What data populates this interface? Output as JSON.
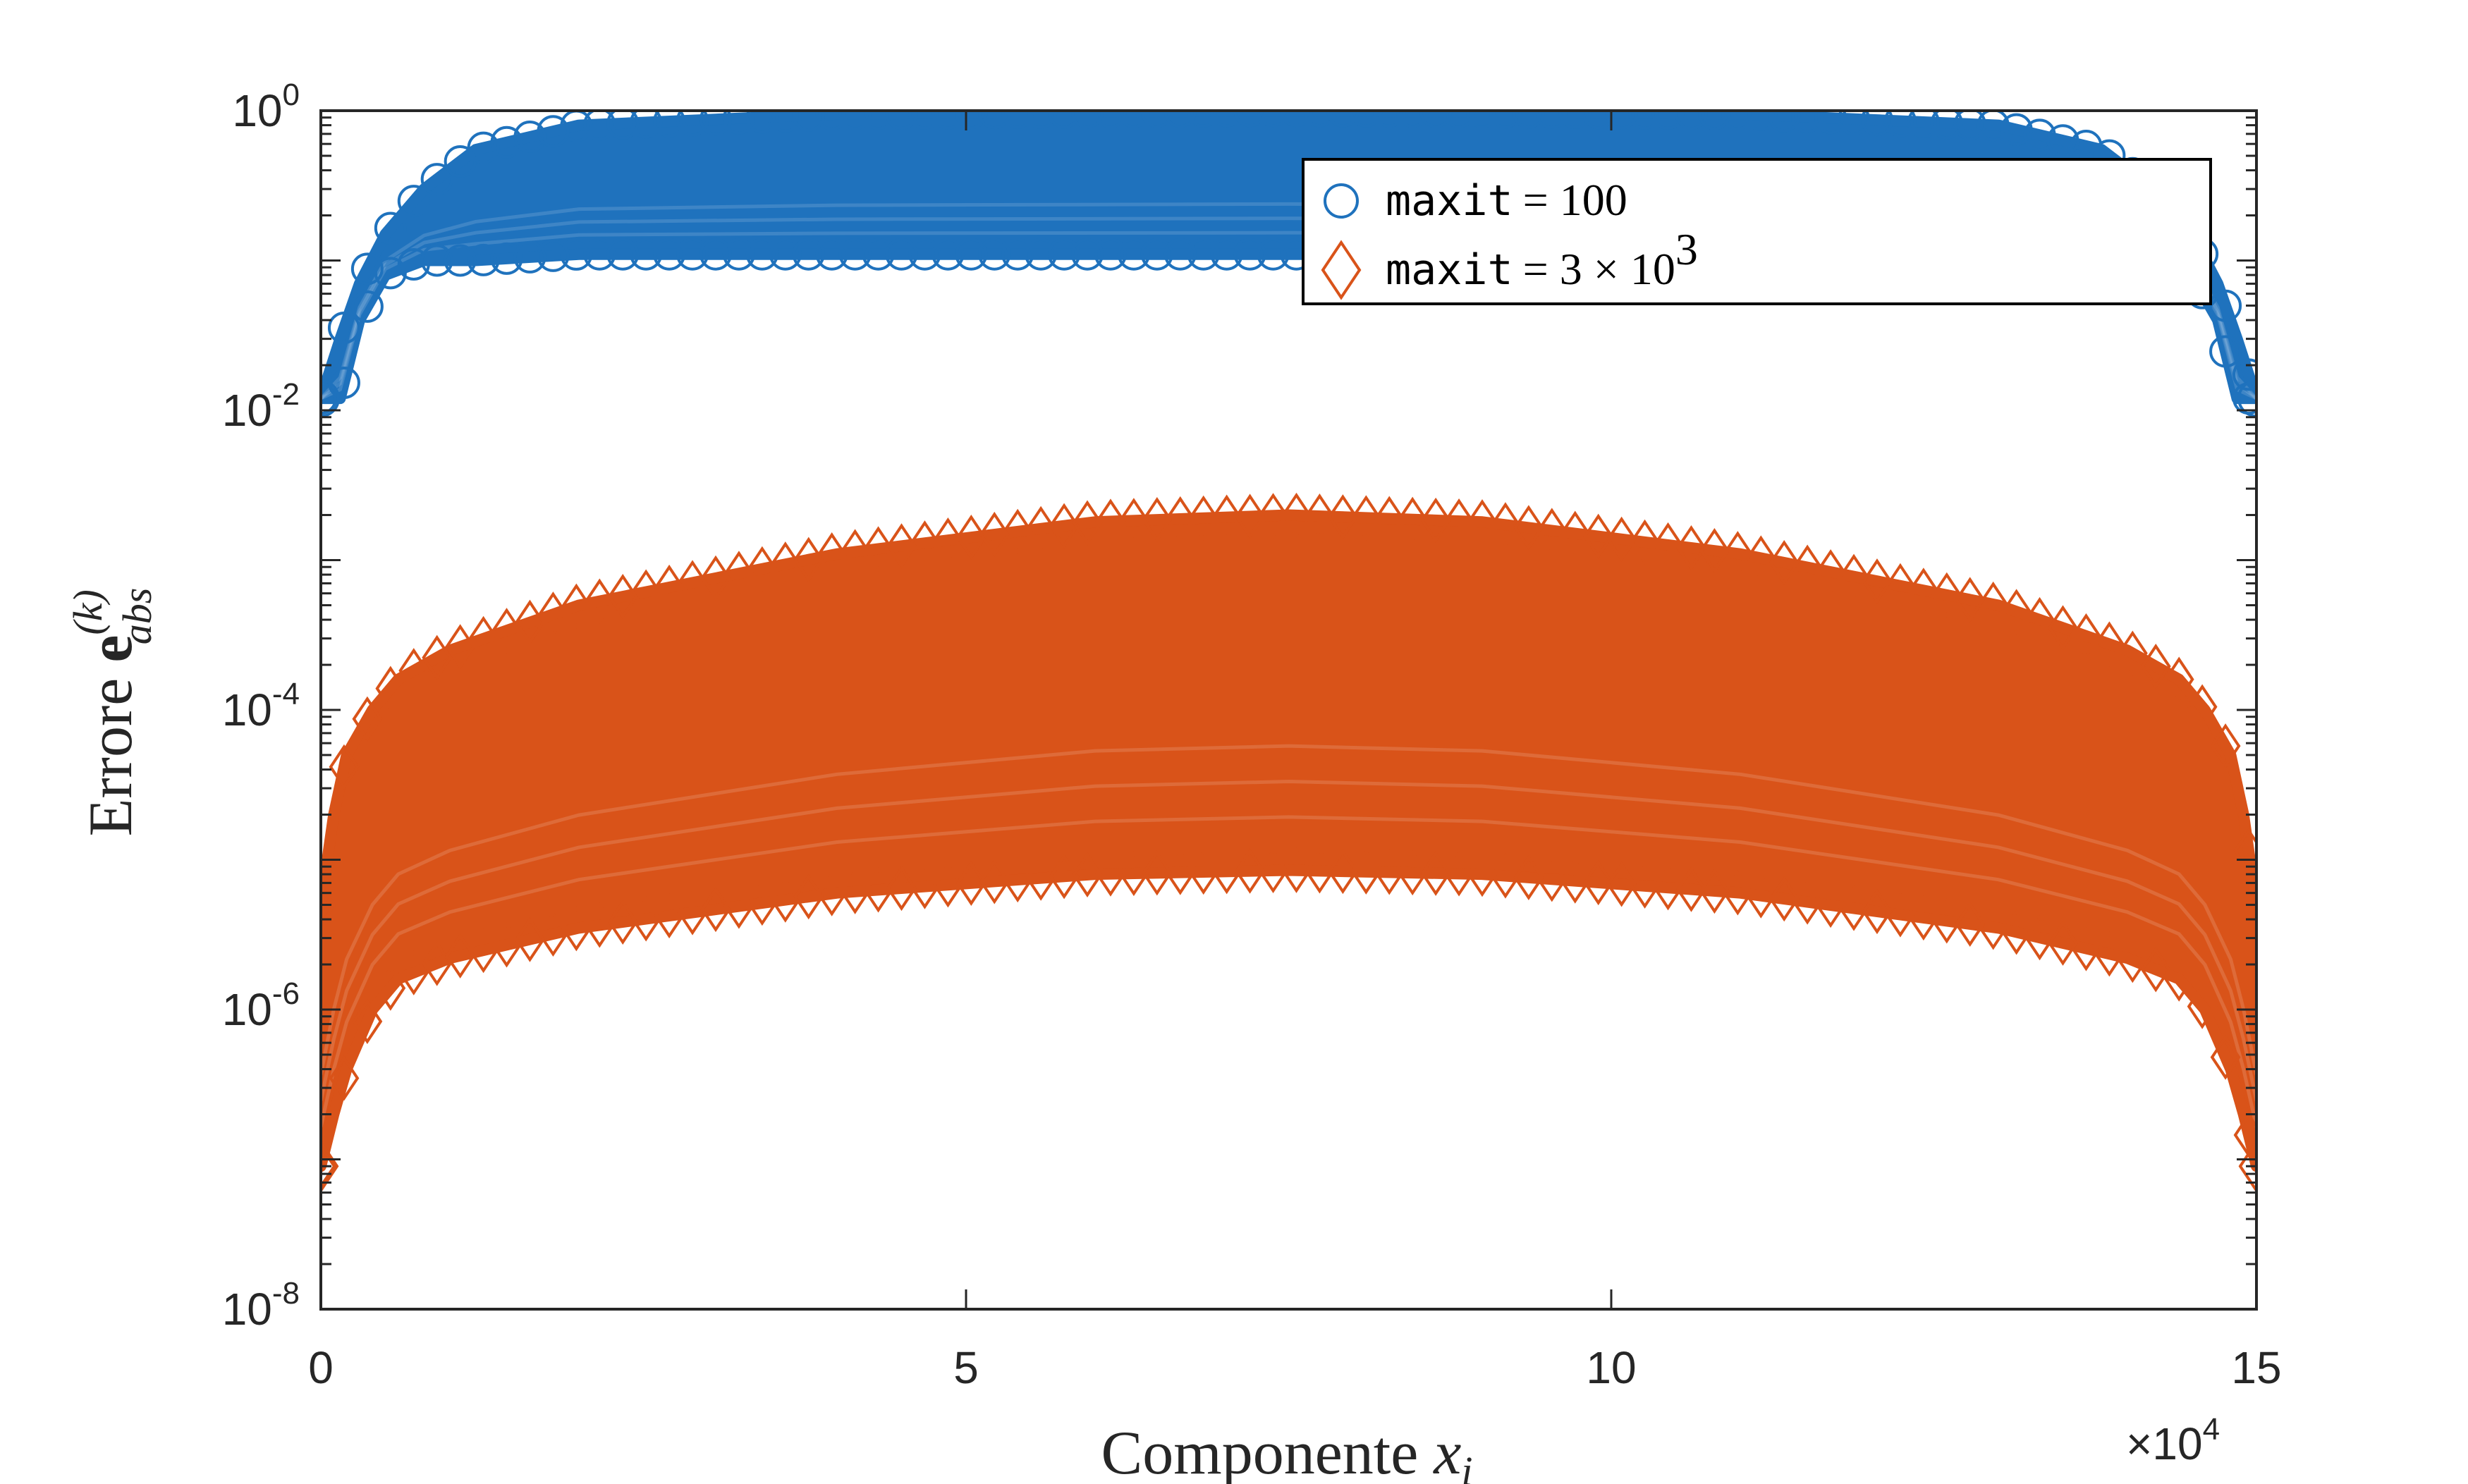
{
  "chart_data": {
    "type": "scatter",
    "xlabel": "Componente x_i",
    "ylabel": "Errore e_abs^(k)",
    "ylabel_parts": {
      "prefix": "Errore ",
      "bold": "e",
      "sup": "(k)",
      "sub": "abs"
    },
    "xlabel_parts": {
      "prefix": "Componente ",
      "var": "x",
      "sub": "i"
    },
    "xlim": [
      0,
      150000
    ],
    "ylim": [
      1e-08,
      1
    ],
    "yscale": "log",
    "x_exponent_label": {
      "base": "×10",
      "exp": "4"
    },
    "x_ticks": [
      {
        "value": 0,
        "label": "0"
      },
      {
        "value": 50000,
        "label": "5"
      },
      {
        "value": 100000,
        "label": "10"
      },
      {
        "value": 150000,
        "label": "15"
      }
    ],
    "y_ticks": [
      {
        "value": 1,
        "base": "10",
        "exp": "0"
      },
      {
        "value": 0.01,
        "base": "10",
        "exp": "-2"
      },
      {
        "value": 0.0001,
        "base": "10",
        "exp": "-4"
      },
      {
        "value": 1e-06,
        "base": "10",
        "exp": "-6"
      },
      {
        "value": 1e-08,
        "base": "10",
        "exp": "-8"
      }
    ],
    "grid": false,
    "legend_position": "top-right",
    "series": [
      {
        "name": "maxit = 100",
        "legend": {
          "code": "maxit",
          "math": "= 100",
          "sup": ""
        },
        "marker": "circle",
        "color": "#1f72bd",
        "x": [
          0,
          1500,
          3000,
          5000,
          8000,
          12000,
          20000,
          40000,
          75000,
          110000,
          130000,
          138000,
          142000,
          145000,
          147000,
          148500,
          150000
        ],
        "y": [
          0.012,
          0.03,
          0.07,
          0.15,
          0.3,
          0.55,
          0.8,
          0.95,
          1.0,
          0.95,
          0.8,
          0.55,
          0.3,
          0.15,
          0.07,
          0.03,
          0.012
        ],
        "band_min": [
          0.012,
          0.012,
          0.04,
          0.08,
          0.1,
          0.1,
          0.11,
          0.11,
          0.11,
          0.11,
          0.11,
          0.1,
          0.1,
          0.08,
          0.04,
          0.012,
          0.012
        ]
      },
      {
        "name": "maxit = 3 × 10^3",
        "legend": {
          "code": "maxit",
          "math": "= 3 × 10",
          "sup": "3"
        },
        "marker": "diamond",
        "color": "#d95319",
        "x": [
          0,
          1000,
          2000,
          4000,
          6000,
          10000,
          20000,
          40000,
          60000,
          75000,
          90000,
          110000,
          130000,
          140000,
          144000,
          146000,
          148000,
          149000,
          150000
        ],
        "y": [
          5e-06,
          2e-05,
          5e-05,
          0.0001,
          0.00016,
          0.00025,
          0.0005,
          0.0011,
          0.0018,
          0.002,
          0.0018,
          0.0011,
          0.0005,
          0.00025,
          0.00016,
          0.0001,
          5e-05,
          2e-05,
          5e-06
        ],
        "band_min": [
          9e-08,
          2e-07,
          4e-07,
          1e-06,
          1.6e-06,
          2.2e-06,
          3.5e-06,
          6e-06,
          8e-06,
          8.5e-06,
          8e-06,
          6e-06,
          3.5e-06,
          2.2e-06,
          1.6e-06,
          1e-06,
          4e-07,
          2e-07,
          9e-08
        ]
      }
    ]
  }
}
